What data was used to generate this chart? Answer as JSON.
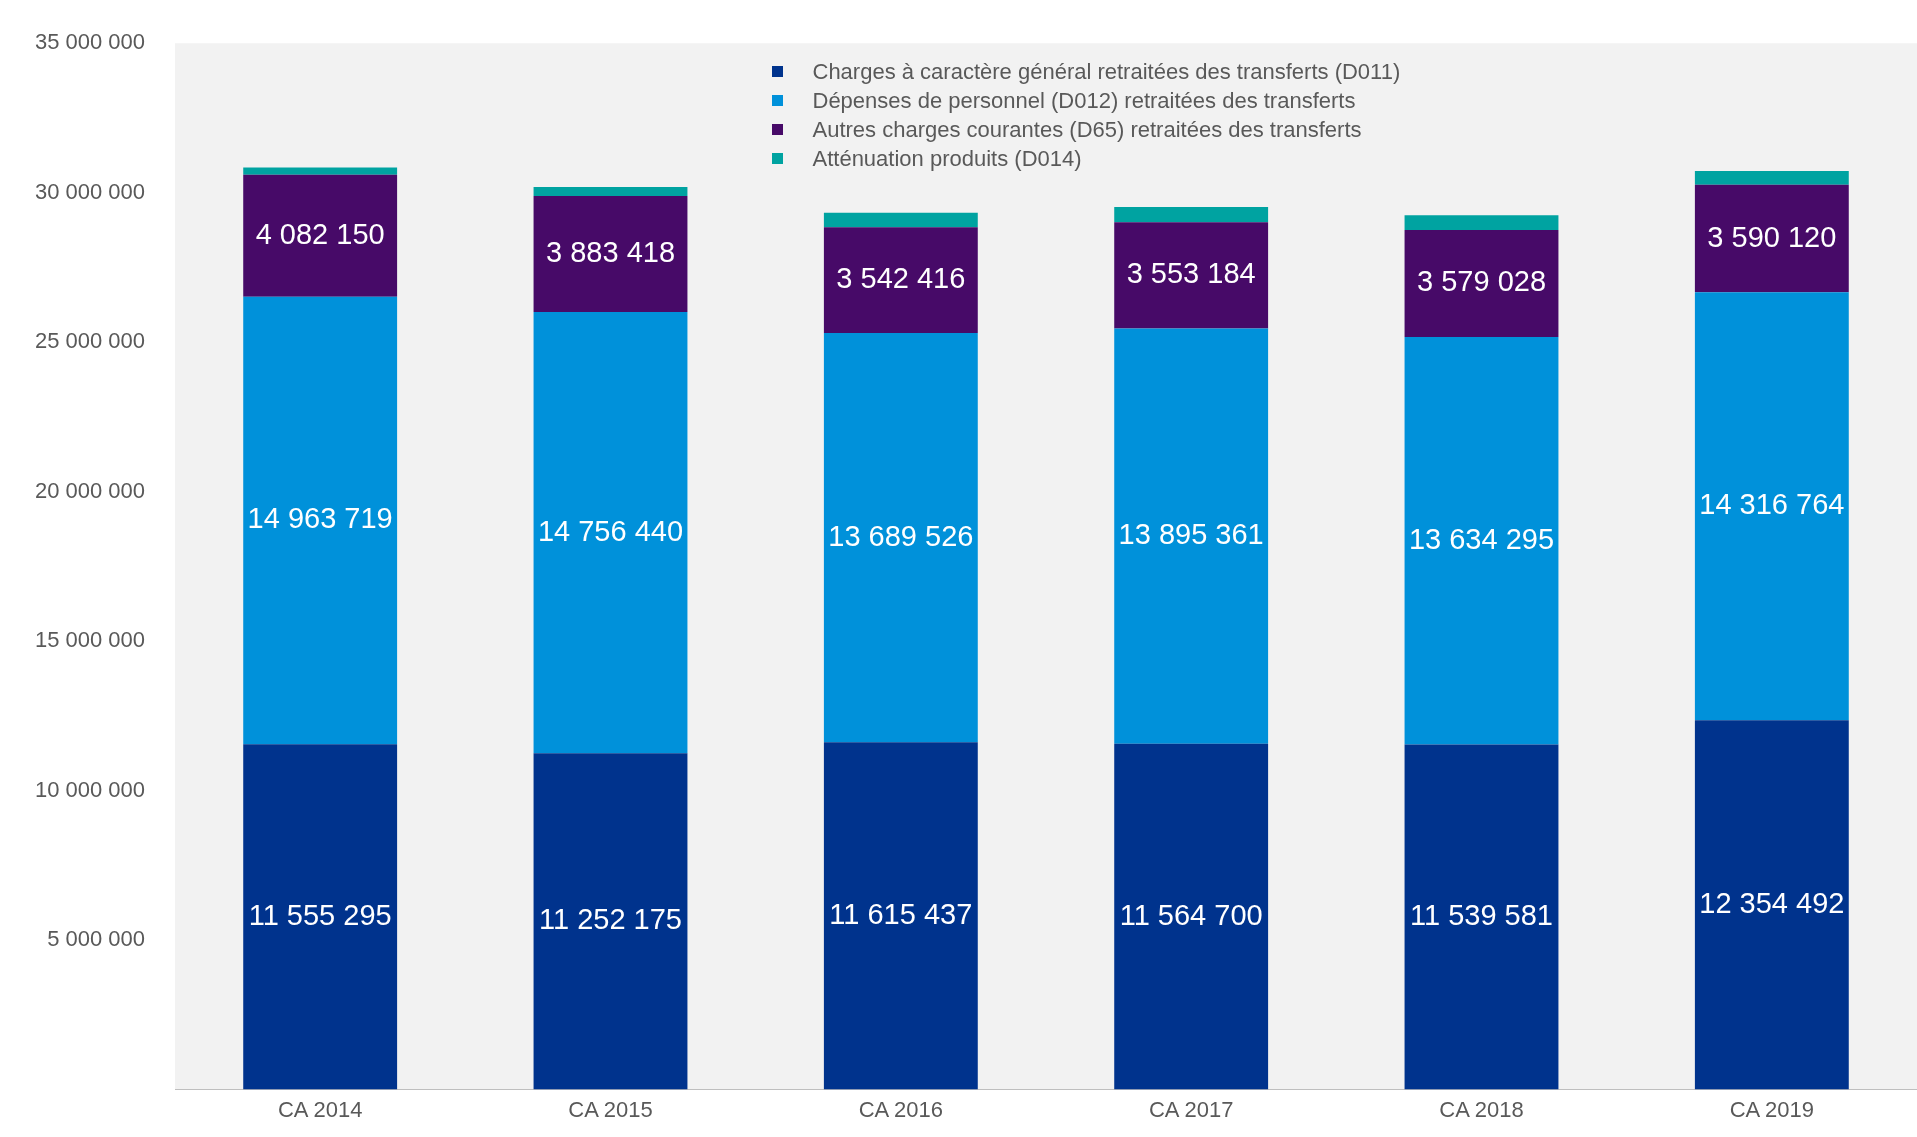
{
  "chart_data": {
    "type": "bar",
    "stacked": true,
    "legend": "top",
    "categories": [
      "CA 2014",
      "CA 2015",
      "CA 2016",
      "CA 2017",
      "CA 2018",
      "CA 2019"
    ],
    "ylim": [
      0,
      35000000
    ],
    "yticks": [
      {
        "value": 5000000,
        "label": "5 000 000"
      },
      {
        "value": 10000000,
        "label": "10 000 000"
      },
      {
        "value": 15000000,
        "label": "15 000 000"
      },
      {
        "value": 20000000,
        "label": "20 000 000"
      },
      {
        "value": 25000000,
        "label": "25 000 000"
      },
      {
        "value": 30000000,
        "label": "30 000 000"
      },
      {
        "value": 35000000,
        "label": "35 000 000"
      }
    ],
    "series": [
      {
        "name": "Charges à caractère général retraitées des transferts (D011)",
        "color": "#00338d",
        "values": [
          11555295,
          11252175,
          11615437,
          11564700,
          11539581,
          12354492
        ],
        "value_labels": [
          "11 555 295",
          "11 252 175",
          "11 615 437",
          "11 564 700",
          "11 539 581",
          "12 354 492"
        ]
      },
      {
        "name": "Dépenses de personnel (D012) retraitées des transferts",
        "color": "#0091da",
        "values": [
          14963719,
          14756440,
          13689526,
          13895361,
          13634295,
          14316764
        ],
        "value_labels": [
          "14 963 719",
          "14 756 440",
          "13 689 526",
          "13 895 361",
          "13 634 295",
          "14 316 764"
        ]
      },
      {
        "name": "Autres charges courantes (D65) retraitées des transferts",
        "color": "#470a68",
        "values": [
          4082150,
          3883418,
          3542416,
          3553184,
          3579028,
          3590120
        ],
        "value_labels": [
          "4 082 150",
          "3 883 418",
          "3 542 416",
          "3 553 184",
          "3 579 028",
          "3 590 120"
        ]
      },
      {
        "name": "Atténuation produits (D014)",
        "color": "#00a3a1",
        "values": [
          240000,
          300000,
          480000,
          510000,
          490000,
          460000
        ]
      }
    ]
  }
}
